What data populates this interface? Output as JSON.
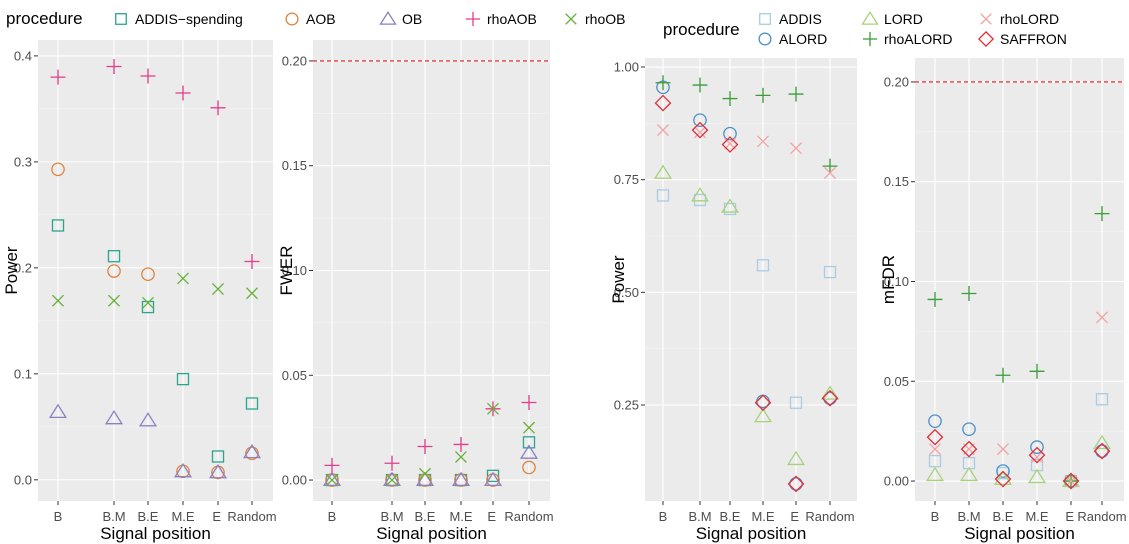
{
  "figure": {
    "legend_left": {
      "title": "procedure",
      "entries": [
        {
          "label": "ADDIS−spending",
          "shape": "square",
          "color": "#2ca58d"
        },
        {
          "label": "AOB",
          "shape": "circle",
          "color": "#e0823d"
        },
        {
          "label": "OB",
          "shape": "triangle",
          "color": "#8c7fc4"
        },
        {
          "label": "rhoAOB",
          "shape": "plus",
          "color": "#e33c8c"
        },
        {
          "label": "rhoOB",
          "shape": "cross",
          "color": "#67b23a"
        }
      ]
    },
    "legend_right": {
      "title": "procedure",
      "entries": [
        {
          "label": "ADDIS",
          "shape": "square",
          "color": "#a9cce3"
        },
        {
          "label": "ALORD",
          "shape": "circle",
          "color": "#4a90c8"
        },
        {
          "label": "LORD",
          "shape": "triangle",
          "color": "#a8d27a"
        },
        {
          "label": "rhoALORD",
          "shape": "plus",
          "color": "#3a9d3a"
        },
        {
          "label": "rhoLORD",
          "shape": "cross",
          "color": "#f4a3a3"
        },
        {
          "label": "SAFFRON",
          "shape": "diamond",
          "color": "#e0303a"
        }
      ]
    }
  },
  "chart_data": [
    {
      "type": "scatter",
      "xlabel": "Signal position",
      "ylabel": "Power",
      "categories": [
        "B",
        "B.M",
        "B.E",
        "M.E",
        "E",
        "Random"
      ],
      "ylim": [
        -0.02,
        0.415
      ],
      "yticks": [
        0.0,
        0.1,
        0.2,
        0.3,
        0.4
      ],
      "ytick_labels": [
        "0.0",
        "0.1",
        "0.2",
        "0.3",
        "0.4"
      ],
      "grid": true,
      "series": [
        {
          "name": "ADDIS−spending",
          "values": [
            0.24,
            0.211,
            0.163,
            0.095,
            0.022,
            0.072
          ]
        },
        {
          "name": "AOB",
          "values": [
            0.293,
            0.197,
            0.194,
            0.008,
            0.007,
            0.025
          ]
        },
        {
          "name": "OB",
          "values": [
            0.064,
            0.058,
            0.056,
            0.008,
            0.007,
            0.026
          ]
        },
        {
          "name": "rhoAOB",
          "values": [
            0.38,
            0.39,
            0.381,
            0.365,
            0.351,
            0.206
          ]
        },
        {
          "name": "rhoOB",
          "values": [
            0.169,
            0.169,
            0.167,
            0.19,
            0.18,
            0.176
          ]
        }
      ]
    },
    {
      "type": "scatter",
      "xlabel": "Signal position",
      "ylabel": "FWER",
      "categories": [
        "B",
        "B.M",
        "B.E",
        "M.E",
        "E",
        "Random"
      ],
      "ylim": [
        -0.01,
        0.21
      ],
      "yticks": [
        0.0,
        0.05,
        0.1,
        0.15,
        0.2
      ],
      "ytick_labels": [
        "0.00",
        "0.05",
        "0.10",
        "0.15",
        "0.20"
      ],
      "grid": true,
      "reference_line": 0.2,
      "series": [
        {
          "name": "ADDIS−spending",
          "values": [
            0.0,
            0.0,
            0.0,
            0.0,
            0.002,
            0.018
          ]
        },
        {
          "name": "AOB",
          "values": [
            0.0,
            0.0,
            0.0,
            0.0,
            0.0,
            0.006
          ]
        },
        {
          "name": "OB",
          "values": [
            0.0,
            0.0,
            0.0,
            0.0,
            0.0,
            0.013
          ]
        },
        {
          "name": "rhoAOB",
          "values": [
            0.007,
            0.008,
            0.016,
            0.017,
            0.034,
            0.037
          ]
        },
        {
          "name": "rhoOB",
          "values": [
            0.0,
            0.0,
            0.003,
            0.011,
            0.034,
            0.025
          ]
        }
      ]
    },
    {
      "type": "scatter",
      "xlabel": "Signal position",
      "ylabel": "Power",
      "categories": [
        "B",
        "B.M",
        "B.E",
        "M.E",
        "E",
        "Random"
      ],
      "ylim": [
        0.037,
        1.02
      ],
      "yticks": [
        0.25,
        0.5,
        0.75,
        1.0
      ],
      "ytick_labels": [
        "0.25",
        "0.50",
        "0.75",
        "1.00"
      ],
      "grid": true,
      "series": [
        {
          "name": "ADDIS",
          "values": [
            0.715,
            0.705,
            0.685,
            0.56,
            0.255,
            0.545
          ]
        },
        {
          "name": "ALORD",
          "values": [
            0.955,
            0.882,
            0.852,
            0.258,
            0.075,
            0.265
          ]
        },
        {
          "name": "LORD",
          "values": [
            0.765,
            0.715,
            0.69,
            0.225,
            0.13,
            0.275
          ]
        },
        {
          "name": "rhoALORD",
          "values": [
            0.965,
            0.96,
            0.93,
            0.937,
            0.94,
            0.78
          ]
        },
        {
          "name": "rhoLORD",
          "values": [
            0.86,
            0.855,
            0.83,
            0.835,
            0.82,
            0.765
          ]
        },
        {
          "name": "SAFFRON",
          "values": [
            0.92,
            0.86,
            0.828,
            0.255,
            0.075,
            0.265
          ]
        }
      ]
    },
    {
      "type": "scatter",
      "xlabel": "Signal position",
      "ylabel": "mFDR",
      "categories": [
        "B",
        "B.M",
        "B.E",
        "M.E",
        "E",
        "Random"
      ],
      "ylim": [
        -0.01,
        0.212
      ],
      "yticks": [
        0.0,
        0.05,
        0.1,
        0.15,
        0.2
      ],
      "ytick_labels": [
        "0.00",
        "0.05",
        "0.10",
        "0.15",
        "0.20"
      ],
      "grid": true,
      "reference_line": 0.2,
      "series": [
        {
          "name": "ADDIS",
          "values": [
            0.01,
            0.009,
            0.004,
            0.008,
            0.0,
            0.041
          ]
        },
        {
          "name": "ALORD",
          "values": [
            0.03,
            0.026,
            0.005,
            0.017,
            0.0,
            0.015
          ]
        },
        {
          "name": "LORD",
          "values": [
            0.003,
            0.003,
            0.001,
            0.002,
            0.0,
            0.019
          ]
        },
        {
          "name": "rhoALORD",
          "values": [
            0.091,
            0.094,
            0.053,
            0.055,
            0.0,
            0.134
          ]
        },
        {
          "name": "rhoLORD",
          "values": [
            0.016,
            0.016,
            0.016,
            0.012,
            0.0,
            0.082
          ]
        },
        {
          "name": "SAFFRON",
          "values": [
            0.022,
            0.016,
            0.001,
            0.013,
            0.0,
            0.015
          ]
        }
      ]
    }
  ]
}
